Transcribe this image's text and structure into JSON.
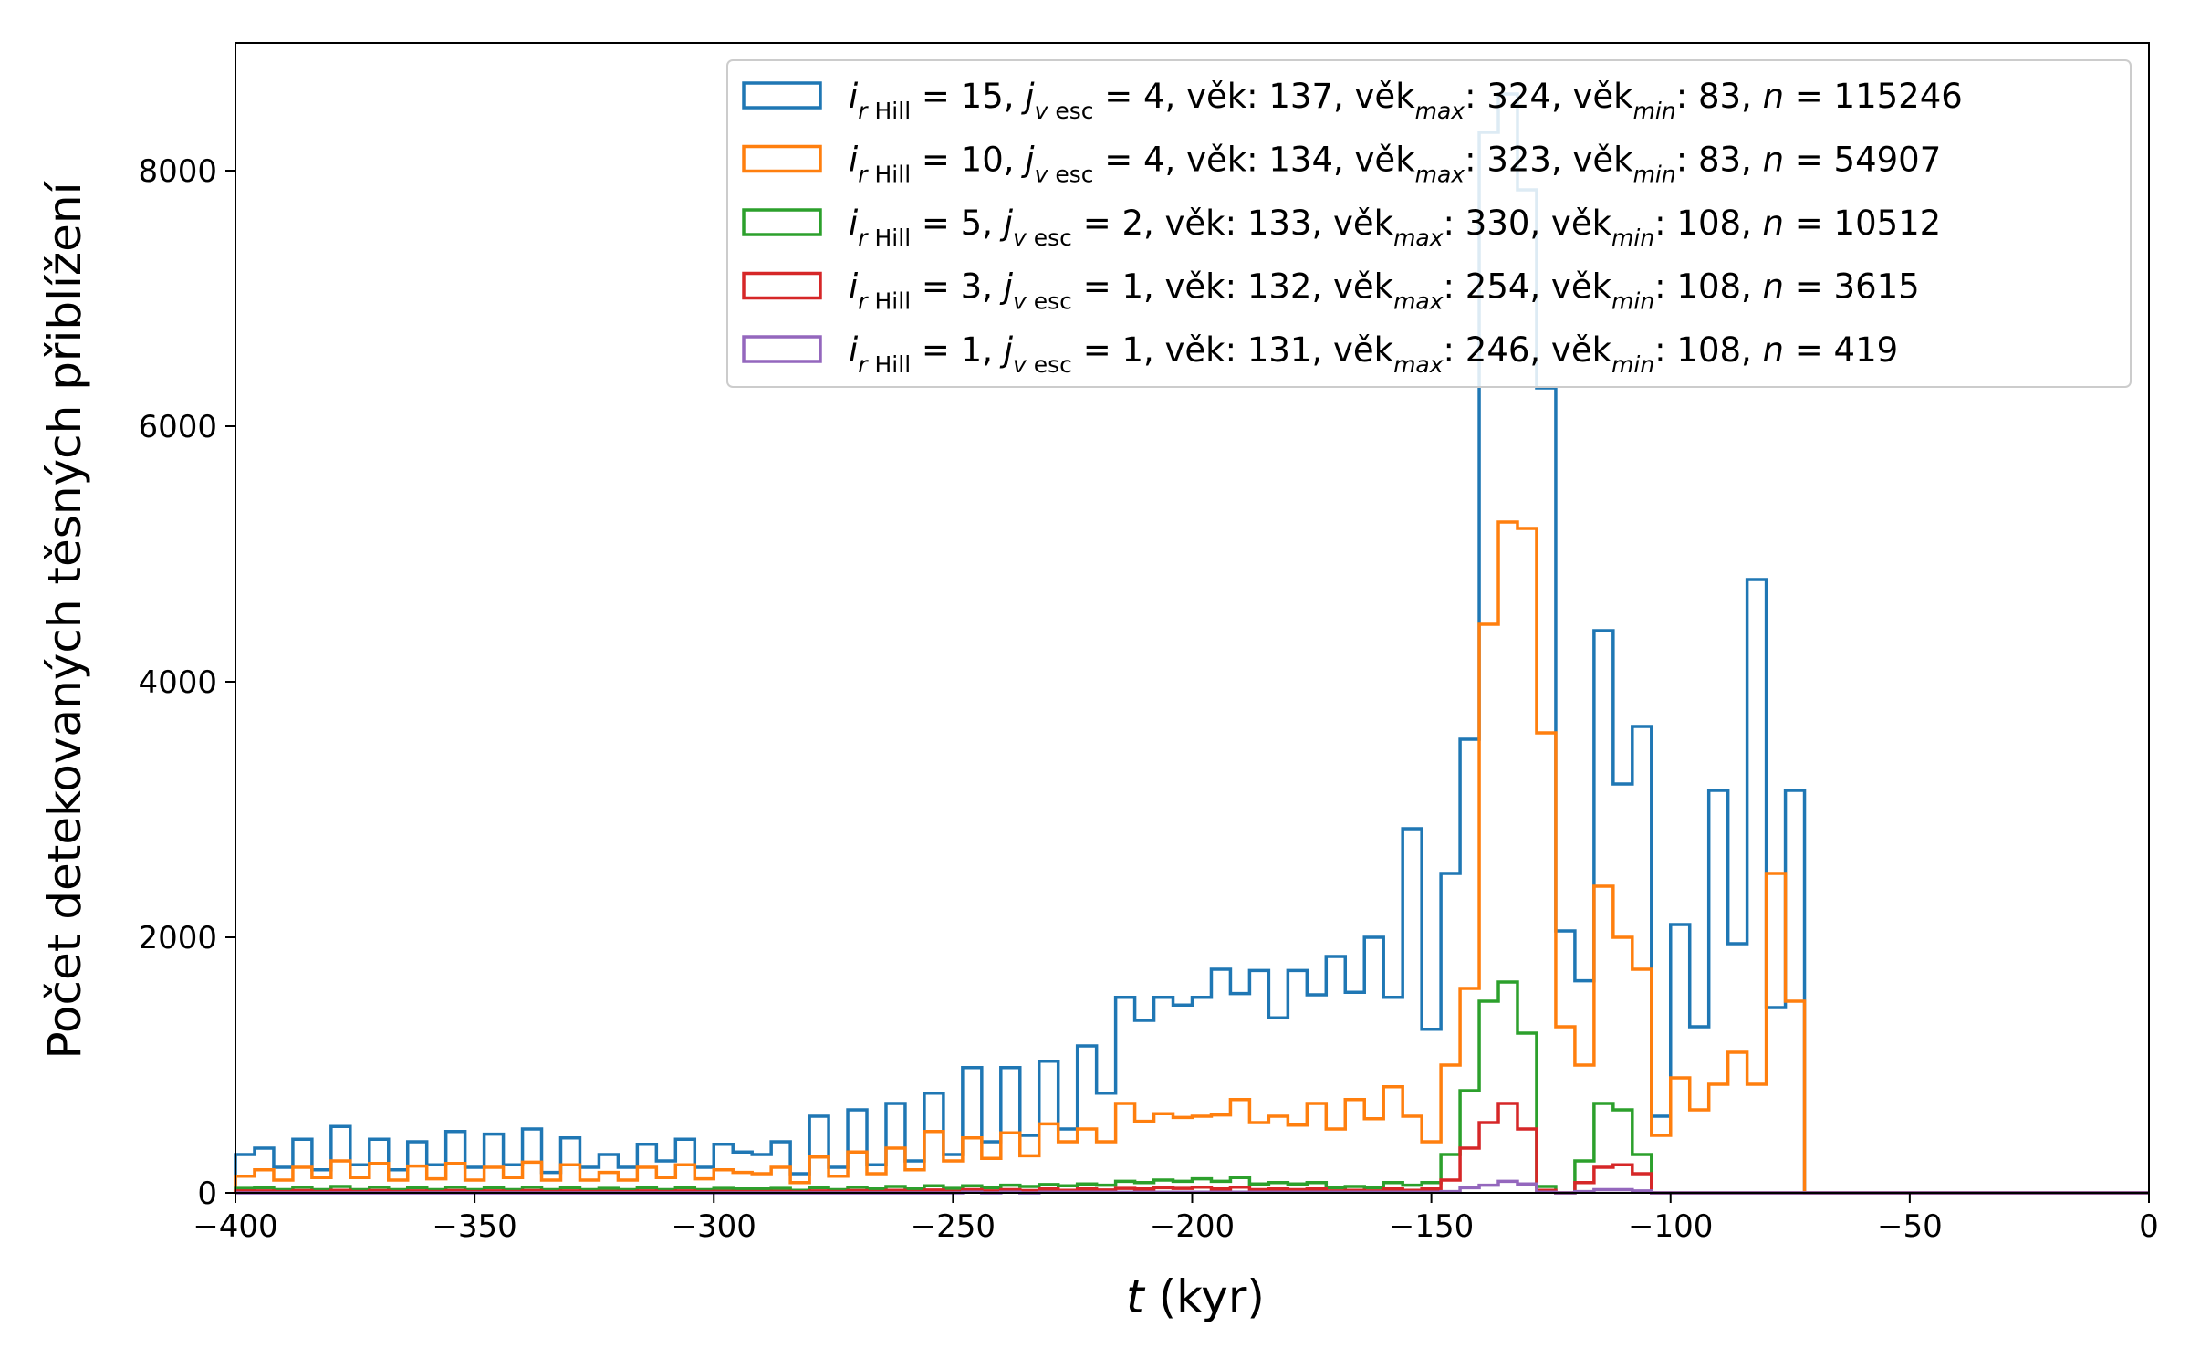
{
  "chart_data": {
    "type": "histogram",
    "xlabel_var": "t",
    "xlabel_unit": " (kyr)",
    "ylabel": "Počet detekovaných těsných přiblížení",
    "xlim": [
      -400,
      0
    ],
    "ylim": [
      0,
      9000
    ],
    "x_ticks": [
      "−400",
      "−350",
      "−300",
      "−250",
      "−200",
      "−150",
      "−100",
      "−50",
      "0"
    ],
    "y_ticks": [
      "0",
      "2000",
      "4000",
      "6000",
      "8000"
    ],
    "bin_start": -400,
    "bin_width": 4,
    "grid": false,
    "legend_position": "top-right",
    "series": [
      {
        "color": "#1f77b4",
        "legend": {
          "r_hill": "15",
          "v_esc": "4",
          "vek": "137",
          "vek_max": "324",
          "vek_min": "83",
          "n": "115246"
        },
        "values": [
          300,
          350,
          200,
          420,
          180,
          520,
          220,
          420,
          180,
          400,
          220,
          480,
          200,
          460,
          220,
          500,
          160,
          430,
          200,
          300,
          200,
          380,
          250,
          420,
          200,
          380,
          320,
          300,
          400,
          150,
          600,
          200,
          650,
          220,
          700,
          250,
          780,
          300,
          980,
          400,
          980,
          450,
          1030,
          500,
          1150,
          780,
          1530,
          1350,
          1530,
          1470,
          1530,
          1750,
          1560,
          1740,
          1370,
          1740,
          1550,
          1850,
          1570,
          2000,
          1530,
          2850,
          1280,
          2500,
          3550,
          8300,
          8600,
          7850,
          6300,
          2050,
          1660,
          4400,
          3200,
          3650,
          600,
          2100,
          1300,
          3150,
          1950,
          4800,
          1450,
          3150,
          0,
          0,
          0,
          0,
          0,
          0,
          0,
          0,
          0,
          0,
          0,
          0,
          0,
          0,
          0,
          0,
          0,
          0
        ]
      },
      {
        "color": "#ff7f0e",
        "legend": {
          "r_hill": "10",
          "v_esc": "4",
          "vek": "134",
          "vek_max": "323",
          "vek_min": "83",
          "n": "54907"
        },
        "values": [
          130,
          180,
          100,
          200,
          120,
          250,
          120,
          230,
          100,
          210,
          110,
          230,
          100,
          200,
          120,
          240,
          100,
          220,
          100,
          160,
          100,
          200,
          120,
          220,
          110,
          180,
          160,
          150,
          200,
          80,
          280,
          130,
          320,
          150,
          350,
          180,
          480,
          250,
          430,
          270,
          470,
          290,
          540,
          400,
          500,
          400,
          700,
          560,
          620,
          590,
          600,
          610,
          730,
          550,
          600,
          530,
          700,
          500,
          730,
          580,
          830,
          600,
          400,
          1000,
          1600,
          4450,
          5250,
          5200,
          3600,
          1300,
          1000,
          2400,
          2000,
          1750,
          450,
          900,
          650,
          850,
          1100,
          850,
          2500,
          1500,
          0,
          0,
          0,
          0,
          0,
          0,
          0,
          0,
          0,
          0,
          0,
          0,
          0,
          0,
          0,
          0,
          0,
          0
        ]
      },
      {
        "color": "#2ca02c",
        "legend": {
          "r_hill": " 5",
          "v_esc": "2",
          "vek": "133",
          "vek_max": "330",
          "vek_min": "108",
          "n": "10512"
        },
        "values": [
          35,
          40,
          25,
          45,
          25,
          50,
          25,
          45,
          25,
          40,
          25,
          45,
          25,
          40,
          25,
          45,
          25,
          40,
          25,
          35,
          25,
          40,
          25,
          40,
          25,
          35,
          30,
          30,
          35,
          20,
          40,
          25,
          45,
          30,
          50,
          30,
          55,
          35,
          55,
          40,
          60,
          50,
          65,
          55,
          70,
          60,
          90,
          80,
          100,
          90,
          110,
          90,
          120,
          70,
          80,
          70,
          80,
          40,
          50,
          40,
          80,
          60,
          80,
          300,
          800,
          1500,
          1650,
          1250,
          50,
          0,
          250,
          700,
          650,
          300,
          0,
          0,
          0,
          0,
          0,
          0,
          0,
          0,
          0,
          0,
          0,
          0,
          0,
          0,
          0,
          0,
          0,
          0,
          0,
          0,
          0,
          0,
          0,
          0,
          0,
          0
        ]
      },
      {
        "color": "#d62728",
        "legend": {
          "r_hill": " 3",
          "v_esc": "1",
          "vek": "132",
          "vek_max": "254",
          "vek_min": "108",
          "n": "3615"
        },
        "values": [
          15,
          15,
          10,
          18,
          10,
          20,
          10,
          18,
          10,
          15,
          10,
          18,
          10,
          15,
          10,
          18,
          10,
          15,
          10,
          12,
          10,
          15,
          10,
          15,
          10,
          12,
          10,
          10,
          12,
          8,
          15,
          10,
          18,
          10,
          20,
          10,
          22,
          12,
          25,
          15,
          25,
          18,
          30,
          20,
          30,
          22,
          35,
          30,
          40,
          35,
          45,
          30,
          45,
          25,
          30,
          25,
          30,
          15,
          20,
          15,
          30,
          20,
          30,
          100,
          350,
          550,
          700,
          500,
          20,
          0,
          80,
          200,
          220,
          150,
          0,
          0,
          0,
          0,
          0,
          0,
          0,
          0,
          0,
          0,
          0,
          0,
          0,
          0,
          0,
          0,
          0,
          0,
          0,
          0,
          0,
          0,
          0,
          0,
          0,
          0
        ]
      },
      {
        "color": "#9467bd",
        "legend": {
          "r_hill": " 1",
          "v_esc": "1",
          "vek": "131",
          "vek_max": "246",
          "vek_min": "108",
          "n": "419"
        },
        "values": [
          0,
          0,
          0,
          0,
          0,
          0,
          0,
          0,
          0,
          0,
          0,
          0,
          0,
          0,
          0,
          0,
          0,
          0,
          0,
          0,
          0,
          0,
          0,
          0,
          0,
          0,
          0,
          0,
          0,
          0,
          0,
          0,
          0,
          0,
          0,
          0,
          0,
          0,
          5,
          0,
          5,
          0,
          5,
          5,
          5,
          5,
          5,
          5,
          5,
          5,
          5,
          5,
          5,
          5,
          5,
          5,
          5,
          5,
          5,
          5,
          5,
          5,
          5,
          10,
          40,
          60,
          90,
          70,
          5,
          0,
          10,
          25,
          25,
          15,
          0,
          0,
          0,
          0,
          0,
          0,
          0,
          0,
          0,
          0,
          0,
          0,
          0,
          0,
          0,
          0,
          0,
          0,
          0,
          0,
          0,
          0,
          0,
          0,
          0,
          0
        ]
      }
    ]
  }
}
